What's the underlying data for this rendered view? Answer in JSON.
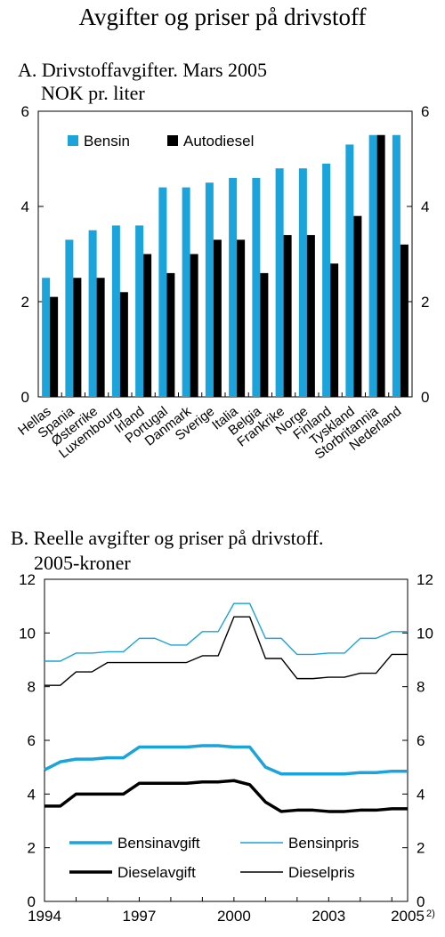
{
  "page": {
    "title": "Avgifter og priser på drivstoff"
  },
  "panel_a": {
    "title": "A. Drivstoffavgifter. Mars 2005",
    "subtitle": "NOK pr. liter"
  },
  "panel_b": {
    "title": "B. Reelle avgifter og priser på drivstoff.",
    "subtitle": "2005-kroner"
  },
  "colors": {
    "blue": "#1ba3dc",
    "black": "#000000"
  },
  "chart_data": [
    {
      "type": "bar",
      "title": "A. Drivstoffavgifter. Mars 2005",
      "ylabel": "NOK pr. liter",
      "ylim": [
        0,
        6
      ],
      "yticks": [
        0,
        2,
        4,
        6
      ],
      "grid": false,
      "legend": "top-left",
      "categories": [
        "Hellas",
        "Spania",
        "Østerrike",
        "Luxembourg",
        "Irland",
        "Portugal",
        "Danmark",
        "Sverige",
        "Italia",
        "Belgia",
        "Frankrike",
        "Norge",
        "Finland",
        "Tyskland",
        "Storbritannia",
        "Nederland"
      ],
      "series": [
        {
          "name": "Bensin",
          "color": "#1ba3dc",
          "values": [
            2.5,
            3.3,
            3.5,
            3.6,
            3.6,
            4.4,
            4.4,
            4.5,
            4.6,
            4.6,
            4.8,
            4.8,
            4.9,
            5.3,
            5.5,
            5.5
          ]
        },
        {
          "name": "Autodiesel",
          "color": "#000000",
          "values": [
            2.1,
            2.5,
            2.5,
            2.2,
            3.0,
            2.6,
            3.0,
            3.3,
            3.3,
            2.6,
            3.4,
            3.4,
            2.8,
            3.8,
            5.5,
            3.2
          ]
        }
      ]
    },
    {
      "type": "line",
      "title": "B. Reelle avgifter og priser på drivstoff.",
      "ylabel": "2005-kroner",
      "xlim": [
        1994,
        2005.5
      ],
      "ylim": [
        0,
        12
      ],
      "yticks": [
        0,
        2,
        4,
        6,
        8,
        10,
        12
      ],
      "xticks": [
        {
          "value": 1994,
          "label": "1994"
        },
        {
          "value": 1997,
          "label": "1997"
        },
        {
          "value": 2000,
          "label": "2000"
        },
        {
          "value": 2003,
          "label": "2003"
        },
        {
          "value": 2005.5,
          "label": "2005",
          "note": "2)"
        }
      ],
      "grid": false,
      "legend": "bottom",
      "x": [
        1994,
        1994.5,
        1995,
        1995.5,
        1996,
        1996.5,
        1997,
        1997.5,
        1998,
        1998.5,
        1999,
        1999.5,
        2000,
        2000.5,
        2001,
        2001.5,
        2002,
        2002.5,
        2003,
        2003.5,
        2004,
        2004.5,
        2005,
        2005.5
      ],
      "series": [
        {
          "name": "Bensinavgift",
          "color": "#1ba3dc",
          "width": "thick",
          "values": [
            4.9,
            5.2,
            5.3,
            5.3,
            5.35,
            5.35,
            5.75,
            5.75,
            5.75,
            5.75,
            5.8,
            5.8,
            5.75,
            5.75,
            5.0,
            4.75,
            4.75,
            4.75,
            4.75,
            4.75,
            4.8,
            4.8,
            4.85,
            4.85
          ]
        },
        {
          "name": "Bensinpris",
          "color": "#1ba3dc",
          "width": "thin",
          "values": [
            8.95,
            8.95,
            9.25,
            9.25,
            9.3,
            9.3,
            9.8,
            9.8,
            9.55,
            9.55,
            10.05,
            10.05,
            11.1,
            11.1,
            9.8,
            9.8,
            9.2,
            9.2,
            9.25,
            9.25,
            9.8,
            9.8,
            10.05,
            10.05
          ]
        },
        {
          "name": "Dieselavgift",
          "color": "#000000",
          "width": "thick",
          "values": [
            3.55,
            3.55,
            4.0,
            4.0,
            4.0,
            4.0,
            4.4,
            4.4,
            4.4,
            4.4,
            4.45,
            4.45,
            4.5,
            4.35,
            3.7,
            3.35,
            3.4,
            3.4,
            3.35,
            3.35,
            3.4,
            3.4,
            3.45,
            3.45
          ]
        },
        {
          "name": "Dieselpris",
          "color": "#000000",
          "width": "thin",
          "values": [
            8.05,
            8.05,
            8.55,
            8.55,
            8.9,
            8.9,
            8.9,
            8.9,
            8.9,
            8.9,
            9.15,
            9.15,
            10.6,
            10.6,
            9.05,
            9.05,
            8.3,
            8.3,
            8.35,
            8.35,
            8.5,
            8.5,
            9.2,
            9.2
          ]
        }
      ]
    }
  ]
}
